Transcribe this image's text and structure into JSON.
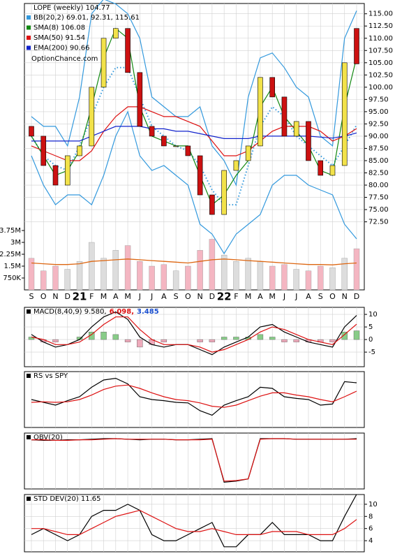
{
  "chart_data": [
    {
      "type": "candlestick",
      "title": "LOPE (weekly) 104.77",
      "watermark": "OptionChance.com",
      "categories": [
        "S",
        "O",
        "N",
        "D",
        "21",
        "F",
        "M",
        "A",
        "M",
        "J",
        "J",
        "A",
        "S",
        "O",
        "N",
        "D",
        "22",
        "F",
        "M",
        "A",
        "M",
        "J",
        "J",
        "A",
        "S",
        "O",
        "N",
        "D"
      ],
      "open": [
        92,
        90,
        84,
        80,
        86,
        88,
        100,
        110,
        112,
        103,
        92,
        90,
        88,
        88,
        86,
        78,
        74,
        83,
        85,
        88,
        102,
        98,
        90,
        93,
        85,
        82,
        84,
        112
      ],
      "close": [
        90,
        84,
        80,
        86,
        88,
        100,
        110,
        112,
        103,
        92,
        90,
        88,
        88,
        86,
        78,
        74,
        83,
        85,
        88,
        102,
        98,
        90,
        93,
        85,
        82,
        84,
        105,
        104.77
      ],
      "up_color": "#f2e24a",
      "down_color": "#cc1111",
      "ylim": [
        58.6,
        117.1
      ],
      "yticks": [
        {
          "value": 72.5,
          "label": "72.50"
        },
        {
          "value": 75,
          "label": "75.00"
        },
        {
          "value": 77.5,
          "label": "77.50"
        },
        {
          "value": 80,
          "label": "80.00"
        },
        {
          "value": 82.5,
          "label": "82.50"
        },
        {
          "value": 85,
          "label": "85.00"
        },
        {
          "value": 87.5,
          "label": "87.50"
        },
        {
          "value": 90,
          "label": "90.00"
        },
        {
          "value": 92.5,
          "label": "92.50"
        },
        {
          "value": 95,
          "label": "95.00"
        },
        {
          "value": 97.5,
          "label": "97.50"
        },
        {
          "value": 100,
          "label": "100.00"
        },
        {
          "value": 102.5,
          "label": "102.50"
        },
        {
          "value": 105,
          "label": "105.00"
        },
        {
          "value": 107.5,
          "label": "107.50"
        },
        {
          "value": 110,
          "label": "110.00"
        },
        {
          "value": 112.5,
          "label": "112.50"
        },
        {
          "value": 115,
          "label": "115.00"
        }
      ],
      "grid": true,
      "series": [
        {
          "name": "BB(20,2) 69.01, 92.31, 115.61",
          "color": "#3399dd",
          "values": [
            94,
            92,
            92,
            88,
            98,
            115,
            118,
            117,
            115,
            110,
            98,
            96,
            94,
            94,
            96,
            88,
            85,
            80,
            98,
            106,
            107,
            104,
            100,
            98,
            90,
            88,
            110,
            115.61
          ]
        },
        {
          "color": "#3399dd",
          "dash": true,
          "values": [
            90,
            86,
            84,
            83,
            88,
            94,
            100,
            104,
            104,
            98,
            92,
            90,
            88,
            87,
            84,
            79,
            76,
            76,
            84,
            92,
            96,
            94,
            90,
            88,
            86,
            84,
            88,
            92.31
          ]
        },
        {
          "color": "#3399dd",
          "values": [
            86,
            80,
            76,
            78,
            78,
            76,
            82,
            90,
            95,
            86,
            83,
            84,
            82,
            80,
            72,
            70,
            66,
            70,
            72,
            74,
            80,
            82,
            82,
            80,
            79,
            78,
            72,
            69.01
          ]
        },
        {
          "name": "SMA(8) 106.08",
          "color": "#118811",
          "values": [
            90,
            86,
            82,
            83,
            87,
            96,
            106,
            112,
            110,
            96,
            90,
            89,
            88,
            88,
            82,
            76,
            78,
            82,
            85,
            96,
            100,
            94,
            91,
            88,
            83,
            82,
            96,
            106.08
          ]
        },
        {
          "name": "SMA(50) 91.54",
          "color": "#dd1111",
          "values": [
            88,
            87,
            86,
            85,
            85,
            87,
            91,
            94,
            96,
            96,
            95,
            94,
            94,
            93,
            92,
            89,
            86,
            86,
            87,
            89,
            91,
            92,
            92,
            92,
            91,
            89,
            90,
            91.54
          ]
        },
        {
          "name": "EMA(200) 90.66",
          "color": "#1122cc",
          "values": [
            89,
            89,
            89,
            89,
            89,
            90,
            91,
            92,
            92,
            92,
            91.5,
            91.5,
            91,
            91,
            90.5,
            90,
            89.5,
            89.5,
            89.5,
            90,
            90,
            90,
            90,
            90,
            89.8,
            89.6,
            90,
            90.66
          ]
        }
      ]
    },
    {
      "type": "volume",
      "values": [
        2000000,
        1200000,
        1500000,
        1300000,
        1800000,
        3000000,
        2000000,
        2500000,
        2800000,
        1800000,
        1500000,
        1600000,
        1200000,
        1500000,
        2500000,
        3200000,
        2200000,
        1800000,
        2000000,
        1800000,
        1500000,
        1600000,
        1300000,
        1200000,
        1500000,
        1400000,
        2000000,
        2600000
      ],
      "up_color": "#dddddd",
      "down_color": "#f4b6c2",
      "average": {
        "color": "#dd6611",
        "values": [
          1700000,
          1650000,
          1600000,
          1600000,
          1650000,
          1800000,
          1850000,
          1900000,
          1950000,
          1900000,
          1850000,
          1800000,
          1750000,
          1700000,
          1800000,
          1900000,
          1950000,
          1900000,
          1850000,
          1800000,
          1750000,
          1700000,
          1650000,
          1600000,
          1600000,
          1580000,
          1650000,
          1700000
        ]
      },
      "ylim": [
        0,
        18090000
      ],
      "yticks": [
        {
          "value": 750000,
          "label": "750K"
        },
        {
          "value": 1500000,
          "label": "1.5M"
        },
        {
          "value": 2250000,
          "label": "2.25M"
        },
        {
          "value": 3000000,
          "label": "3M"
        },
        {
          "value": 3750000,
          "label": "3.75M"
        }
      ]
    },
    {
      "type": "macd",
      "legend": [
        {
          "text": "MACD(8,40,9) 9.580,",
          "color": "#000000"
        },
        {
          "text": "6.098,",
          "color": "#dd1111"
        },
        {
          "text": "3.485",
          "color": "#1a4fd0"
        }
      ],
      "ylim": [
        -10.8,
        12.8
      ],
      "yticks": [
        -5,
        0,
        5,
        10
      ],
      "grid": true,
      "histogram": {
        "pos_color": "#88cc88",
        "neg_color": "#eeaabb",
        "values": [
          1,
          -1,
          -1,
          0,
          1,
          3,
          3,
          2,
          -1,
          -3,
          -2,
          -1,
          0,
          0,
          -1,
          -1,
          1,
          1,
          1,
          2,
          1,
          -1,
          -1,
          -1,
          -1,
          -1,
          3,
          3.485
        ]
      },
      "series": [
        {
          "color": "#000000",
          "values": [
            2,
            -1,
            -3,
            -2,
            0,
            5,
            9,
            11,
            8,
            1,
            -2,
            -3,
            -2,
            -2,
            -4,
            -6,
            -3,
            -1,
            1,
            5,
            6,
            3,
            1,
            -1,
            -2,
            -3,
            5,
            9.58
          ]
        },
        {
          "color": "#dd1111",
          "values": [
            1,
            0,
            -2,
            -2,
            -1,
            2,
            6,
            9,
            9,
            4,
            0,
            -2,
            -2,
            -2,
            -3,
            -5,
            -4,
            -2,
            0,
            3,
            5,
            4,
            2,
            0,
            -1,
            -2,
            2,
            6.098
          ]
        }
      ]
    },
    {
      "type": "line",
      "title": "RS vs SPY",
      "ylim": [
        0,
        100
      ],
      "series": [
        {
          "color": "#000000",
          "values": [
            50,
            45,
            40,
            48,
            55,
            72,
            85,
            88,
            78,
            55,
            50,
            48,
            45,
            44,
            30,
            22,
            40,
            48,
            55,
            72,
            70,
            55,
            52,
            50,
            40,
            42,
            82,
            80
          ]
        },
        {
          "color": "#dd1111",
          "values": [
            45,
            46,
            45,
            46,
            50,
            58,
            68,
            74,
            76,
            70,
            62,
            55,
            50,
            48,
            44,
            38,
            36,
            40,
            48,
            56,
            62,
            62,
            58,
            55,
            50,
            46,
            55,
            65
          ]
        }
      ]
    },
    {
      "type": "line",
      "title": "OBV(20)",
      "ylim": [
        0,
        100
      ],
      "series": [
        {
          "color": "#000000",
          "values": [
            88,
            87,
            87,
            88,
            88,
            89,
            90,
            90,
            89,
            88,
            89,
            89,
            88,
            88,
            89,
            90,
            12,
            14,
            18,
            90,
            90,
            90,
            89,
            89,
            89,
            89,
            89,
            90
          ]
        },
        {
          "color": "#dd1111",
          "values": [
            88,
            88,
            87,
            87,
            88,
            88,
            89,
            90,
            89,
            89,
            89,
            89,
            88,
            88,
            88,
            89,
            14,
            15,
            18,
            89,
            90,
            90,
            89,
            89,
            89,
            89,
            89,
            89
          ]
        }
      ]
    },
    {
      "type": "line",
      "title": "STD DEV(20) 11.65",
      "ylim": [
        2.17,
        11.6
      ],
      "yticks": [
        4,
        6,
        8,
        10
      ],
      "grid": true,
      "series": [
        {
          "color": "#000000",
          "values": [
            5,
            6,
            5,
            4,
            5,
            8,
            9,
            9,
            10,
            9,
            5,
            4,
            4,
            5,
            6,
            7,
            3,
            3,
            5,
            5,
            7,
            5,
            5,
            5,
            4,
            4,
            8,
            11.65
          ]
        },
        {
          "color": "#dd1111",
          "values": [
            6,
            6,
            5.5,
            5,
            5,
            6,
            7,
            8,
            8.5,
            9,
            8,
            7,
            6,
            5.5,
            5.5,
            6,
            5.5,
            5,
            5,
            5,
            5.5,
            5.5,
            5.5,
            5,
            5,
            5,
            6,
            7.5
          ]
        }
      ]
    }
  ]
}
